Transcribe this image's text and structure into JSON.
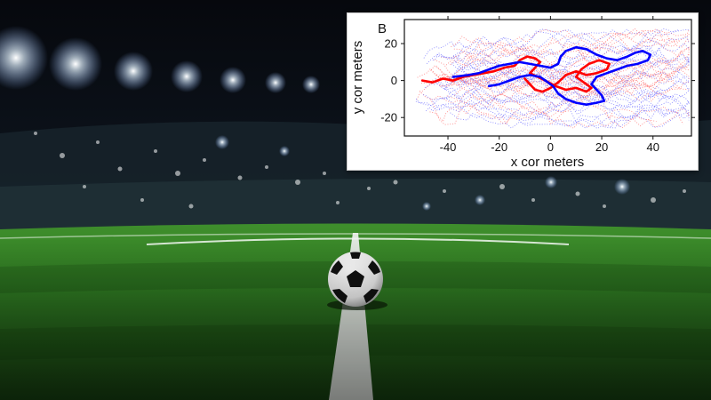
{
  "chart_data": {
    "type": "line",
    "panel_label": "B",
    "xlabel": "x cor meters",
    "ylabel": "y cor meters",
    "xlim": [
      -57,
      55
    ],
    "ylim": [
      -30,
      33
    ],
    "xticks": [
      -40,
      -20,
      0,
      20,
      40
    ],
    "yticks": [
      -20,
      0,
      20
    ],
    "grid": false,
    "legend": "none",
    "series": [
      {
        "color": "#ff0000",
        "style": "solid",
        "values": [
          [
            -50,
            0
          ],
          [
            -46,
            -1
          ],
          [
            -42,
            1
          ],
          [
            -38,
            0
          ],
          [
            -34,
            2
          ],
          [
            -30,
            3
          ],
          [
            -26,
            4
          ],
          [
            -22,
            5
          ],
          [
            -18,
            7
          ],
          [
            -14,
            8
          ],
          [
            -12,
            11
          ],
          [
            -9,
            13
          ],
          [
            -6,
            12
          ],
          [
            -4,
            10
          ],
          [
            -6,
            7
          ],
          [
            -8,
            4
          ],
          [
            -5,
            2
          ],
          [
            -2,
            0
          ],
          [
            2,
            -3
          ],
          [
            6,
            -5
          ],
          [
            10,
            -4
          ],
          [
            14,
            -6
          ],
          [
            16,
            -4
          ],
          [
            13,
            -1
          ],
          [
            10,
            2
          ],
          [
            12,
            6
          ],
          [
            15,
            9
          ],
          [
            19,
            11
          ],
          [
            23,
            9
          ],
          [
            22,
            6
          ],
          [
            18,
            4
          ],
          [
            14,
            3
          ],
          [
            10,
            5
          ],
          [
            6,
            3
          ],
          [
            3,
            -1
          ],
          [
            0,
            -4
          ],
          [
            -3,
            -6
          ],
          [
            -6,
            -5
          ],
          [
            -8,
            -2
          ],
          [
            -10,
            1
          ]
        ]
      },
      {
        "color": "#0000ff",
        "style": "solid",
        "values": [
          [
            -38,
            2
          ],
          [
            -32,
            3
          ],
          [
            -28,
            4
          ],
          [
            -24,
            6
          ],
          [
            -20,
            8
          ],
          [
            -16,
            9
          ],
          [
            -12,
            10
          ],
          [
            -8,
            9
          ],
          [
            -4,
            8
          ],
          [
            0,
            7
          ],
          [
            3,
            9
          ],
          [
            4,
            13
          ],
          [
            6,
            16
          ],
          [
            10,
            18
          ],
          [
            14,
            17
          ],
          [
            18,
            14
          ],
          [
            22,
            12
          ],
          [
            26,
            11
          ],
          [
            30,
            13
          ],
          [
            33,
            15
          ],
          [
            36,
            16
          ],
          [
            39,
            14
          ],
          [
            38,
            11
          ],
          [
            34,
            9
          ],
          [
            30,
            8
          ],
          [
            26,
            6
          ],
          [
            22,
            4
          ],
          [
            18,
            2
          ],
          [
            16,
            -2
          ],
          [
            18,
            -5
          ],
          [
            20,
            -8
          ],
          [
            21,
            -11
          ],
          [
            18,
            -12
          ],
          [
            14,
            -13
          ],
          [
            10,
            -12
          ],
          [
            6,
            -10
          ],
          [
            3,
            -7
          ],
          [
            1,
            -3
          ],
          [
            -2,
            0
          ],
          [
            -4,
            2
          ],
          [
            -8,
            3
          ],
          [
            -12,
            2
          ],
          [
            -16,
            0
          ],
          [
            -20,
            -2
          ],
          [
            -24,
            -3
          ]
        ]
      }
    ],
    "background_tracks": [
      {
        "color": "#ff6a6a",
        "style": "dotted",
        "count": 26
      },
      {
        "color": "#6a6aff",
        "style": "dotted",
        "count": 26
      }
    ]
  }
}
